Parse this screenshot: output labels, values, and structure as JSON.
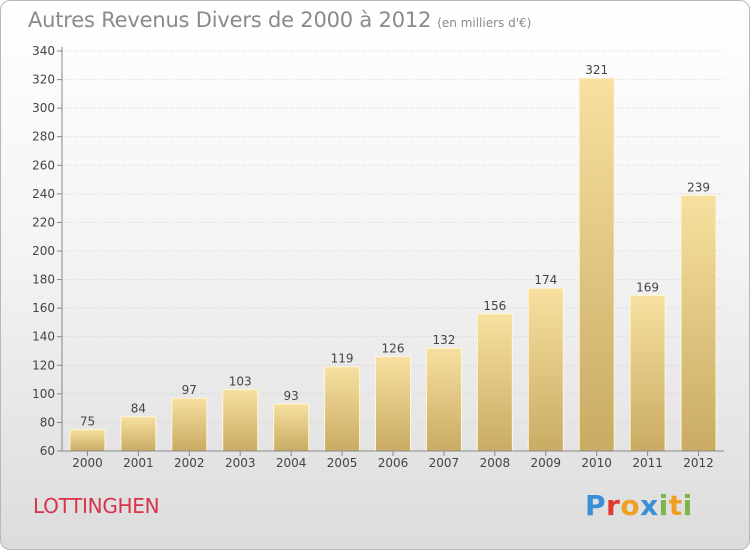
{
  "header": {
    "title": "Autres Revenus Divers de 2000 à 2012",
    "subtitle": "(en milliers d'€)"
  },
  "footer": {
    "commune": "LOTTINGHEN",
    "logo_letters": [
      {
        "char": "P",
        "color": "#3a8fd6"
      },
      {
        "char": "r",
        "color": "#e0392f"
      },
      {
        "char": "o",
        "color": "#f0a020"
      },
      {
        "char": "x",
        "color": "#3a8fd6"
      },
      {
        "char": "i",
        "color": "#7ab648"
      },
      {
        "char": "t",
        "color": "#f0a020"
      },
      {
        "char": "i",
        "color": "#7ab648"
      }
    ]
  },
  "colors": {
    "bar_light": "#f7e0a0",
    "bar_dark": "#c9ab63",
    "grid": "#cfcfcf",
    "axis": "#888888"
  },
  "chart_data": {
    "type": "bar",
    "title": "Autres Revenus Divers de 2000 à 2012",
    "subtitle": "(en milliers d'€)",
    "categories": [
      "2000",
      "2001",
      "2002",
      "2003",
      "2004",
      "2005",
      "2006",
      "2007",
      "2008",
      "2009",
      "2010",
      "2011",
      "2012"
    ],
    "values": [
      75,
      84,
      97,
      103,
      93,
      119,
      126,
      132,
      156,
      174,
      321,
      169,
      239
    ],
    "ylim": [
      60,
      340
    ],
    "ytick_step": 20,
    "grid": true,
    "data_labels": true
  }
}
